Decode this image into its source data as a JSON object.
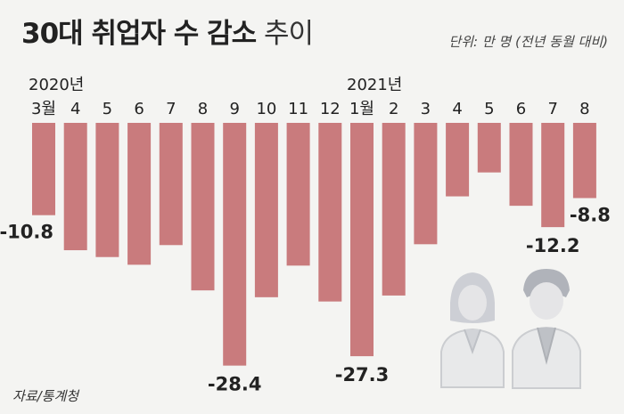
{
  "title_bold": "30대 취업자 수 감소",
  "title_light": "추이",
  "unit_note": "단위: 만 명 (전년 동월 대비)",
  "source": "자료/통계청",
  "chart_data": {
    "type": "bar",
    "year_labels": [
      {
        "index": 0,
        "text": "2020년"
      },
      {
        "index": 10,
        "text": "2021년"
      }
    ],
    "categories": [
      "3월",
      "4",
      "5",
      "6",
      "7",
      "8",
      "9",
      "10",
      "11",
      "12",
      "1월",
      "2",
      "3",
      "4",
      "5",
      "6",
      "7",
      "8"
    ],
    "values": [
      -10.8,
      -14.9,
      -15.7,
      -16.6,
      -14.3,
      -19.6,
      -28.4,
      -20.4,
      -16.7,
      -20.9,
      -27.3,
      -20.2,
      -14.2,
      -8.6,
      -5.8,
      -9.7,
      -12.2,
      -8.8
    ],
    "data_labels": {
      "0": "-10.8",
      "6": "-28.4",
      "10": "-27.3",
      "16": "-12.2",
      "17": "-8.8"
    },
    "bar_color": "#c97b7d",
    "ylim": [
      -30,
      0
    ],
    "grid": false
  }
}
